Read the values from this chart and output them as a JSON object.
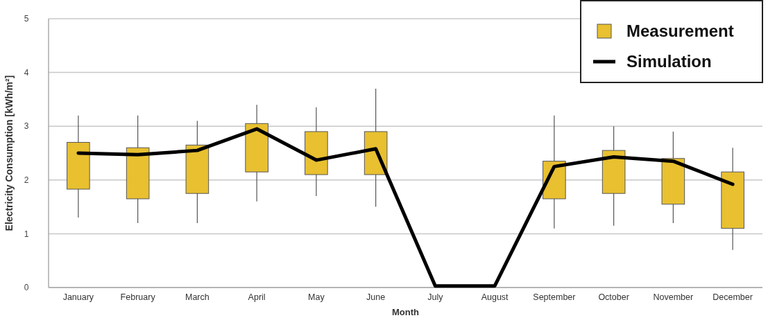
{
  "chart_data": {
    "type": "candlestick",
    "xlabel": "Month",
    "ylabel": "Electricity Consumption [kWh/m²]",
    "categories": [
      "January",
      "February",
      "March",
      "April",
      "May",
      "June",
      "July",
      "August",
      "September",
      "October",
      "November",
      "December"
    ],
    "ylim": [
      0,
      5
    ],
    "yticks": [
      0,
      1,
      2,
      3,
      4,
      5
    ],
    "grid": "y",
    "legend": "top right",
    "series": [
      {
        "name": "Measurement",
        "color": "#e8c030",
        "ohlc": [
          [
            1.83,
            3.2,
            1.3,
            2.7
          ],
          [
            1.65,
            3.2,
            1.2,
            2.6
          ],
          [
            1.75,
            3.1,
            1.2,
            2.65
          ],
          [
            2.15,
            3.4,
            1.6,
            3.05
          ],
          [
            2.1,
            3.35,
            1.7,
            2.9
          ],
          [
            2.1,
            3.7,
            1.5,
            2.9
          ],
          null,
          null,
          [
            1.65,
            3.2,
            1.1,
            2.35
          ],
          [
            1.75,
            3.0,
            1.15,
            2.55
          ],
          [
            1.55,
            2.9,
            1.2,
            2.4
          ],
          [
            1.1,
            2.6,
            0.7,
            2.15
          ]
        ]
      },
      {
        "name": "Simulation",
        "type": "line",
        "color": "#000000",
        "values": [
          2.5,
          2.47,
          2.55,
          2.95,
          2.37,
          2.58,
          0.03,
          0.03,
          2.25,
          2.43,
          2.35,
          1.92
        ]
      }
    ]
  }
}
